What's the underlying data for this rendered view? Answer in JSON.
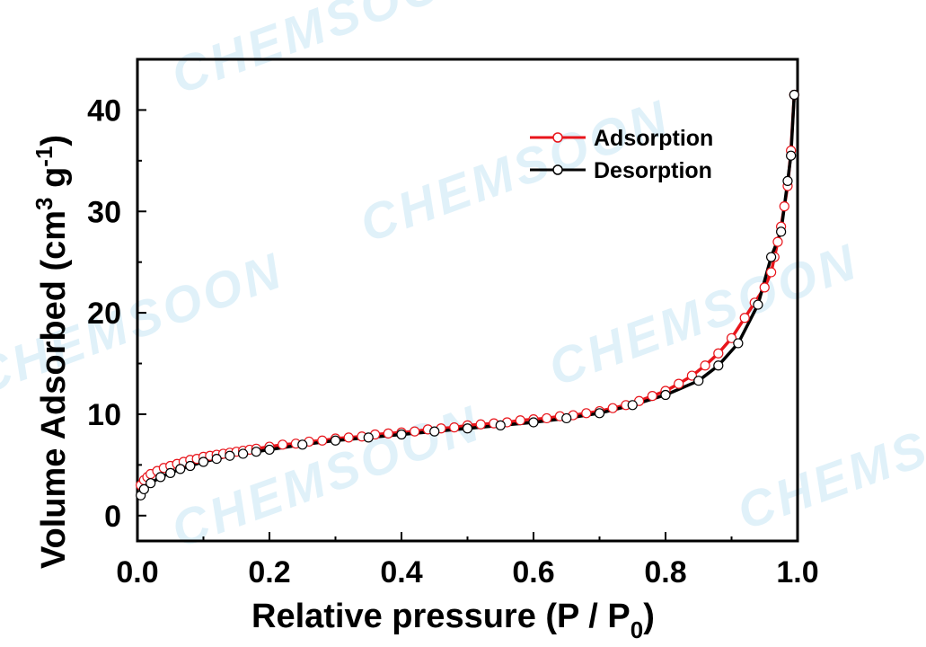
{
  "watermark": "CHEMSOON",
  "chart_data": {
    "type": "line",
    "xlabel": "Relative pressure (P / P",
    "xlabel_subscript": "0",
    "xlabel_suffix": ")",
    "ylabel": "Volume Adsorbed (cm",
    "ylabel_sup1": "3",
    "ylabel_mid": " g",
    "ylabel_sup2": "-1",
    "ylabel_suffix": ")",
    "xlim": [
      0.0,
      1.0
    ],
    "ylim": [
      -2.5,
      45
    ],
    "x_ticks": [
      0.0,
      0.2,
      0.4,
      0.6,
      0.8,
      1.0
    ],
    "x_tick_labels": [
      "0.0",
      "0.2",
      "0.4",
      "0.6",
      "0.8",
      "1.0"
    ],
    "y_ticks": [
      0,
      10,
      20,
      30,
      40
    ],
    "y_tick_labels": [
      "0",
      "10",
      "20",
      "30",
      "40"
    ],
    "legend_position": "top-right",
    "series": [
      {
        "name": "Adsorption",
        "color": "#e8151b",
        "marker": "open-circle",
        "x": [
          0.005,
          0.01,
          0.015,
          0.02,
          0.03,
          0.04,
          0.05,
          0.06,
          0.07,
          0.08,
          0.09,
          0.1,
          0.11,
          0.12,
          0.13,
          0.14,
          0.15,
          0.16,
          0.17,
          0.18,
          0.2,
          0.22,
          0.24,
          0.26,
          0.28,
          0.3,
          0.32,
          0.34,
          0.36,
          0.38,
          0.4,
          0.42,
          0.44,
          0.46,
          0.48,
          0.5,
          0.52,
          0.54,
          0.56,
          0.58,
          0.6,
          0.62,
          0.64,
          0.66,
          0.68,
          0.7,
          0.72,
          0.74,
          0.76,
          0.78,
          0.8,
          0.82,
          0.84,
          0.86,
          0.88,
          0.9,
          0.92,
          0.935,
          0.95,
          0.96,
          0.965,
          0.97,
          0.975,
          0.98,
          0.985,
          0.99,
          0.995
        ],
        "values": [
          3.0,
          3.5,
          3.8,
          4.1,
          4.4,
          4.7,
          4.9,
          5.1,
          5.3,
          5.5,
          5.6,
          5.8,
          5.9,
          6.0,
          6.1,
          6.2,
          6.3,
          6.4,
          6.5,
          6.6,
          6.8,
          7.0,
          7.1,
          7.3,
          7.4,
          7.6,
          7.7,
          7.8,
          8.0,
          8.1,
          8.2,
          8.3,
          8.5,
          8.6,
          8.7,
          8.9,
          9.0,
          9.1,
          9.2,
          9.4,
          9.5,
          9.6,
          9.8,
          9.9,
          10.1,
          10.3,
          10.6,
          10.9,
          11.3,
          11.8,
          12.3,
          13.0,
          13.8,
          14.8,
          16.0,
          17.5,
          19.5,
          21.0,
          22.5,
          24.0,
          25.5,
          27.0,
          28.5,
          30.5,
          32.5,
          36.0,
          41.5
        ]
      },
      {
        "name": "Desorption",
        "color": "#000000",
        "marker": "open-circle",
        "x": [
          0.005,
          0.01,
          0.02,
          0.035,
          0.05,
          0.065,
          0.08,
          0.1,
          0.12,
          0.14,
          0.16,
          0.18,
          0.2,
          0.25,
          0.3,
          0.35,
          0.4,
          0.45,
          0.5,
          0.55,
          0.6,
          0.65,
          0.7,
          0.75,
          0.8,
          0.85,
          0.88,
          0.91,
          0.94,
          0.96,
          0.975,
          0.985,
          0.99,
          0.995
        ],
        "values": [
          2.0,
          2.6,
          3.2,
          3.8,
          4.2,
          4.6,
          4.9,
          5.3,
          5.6,
          5.9,
          6.1,
          6.3,
          6.5,
          7.0,
          7.4,
          7.7,
          8.0,
          8.3,
          8.6,
          8.9,
          9.2,
          9.6,
          10.1,
          10.9,
          11.9,
          13.3,
          14.8,
          17.0,
          20.8,
          25.5,
          28.0,
          33.0,
          35.5,
          41.5
        ]
      }
    ]
  }
}
